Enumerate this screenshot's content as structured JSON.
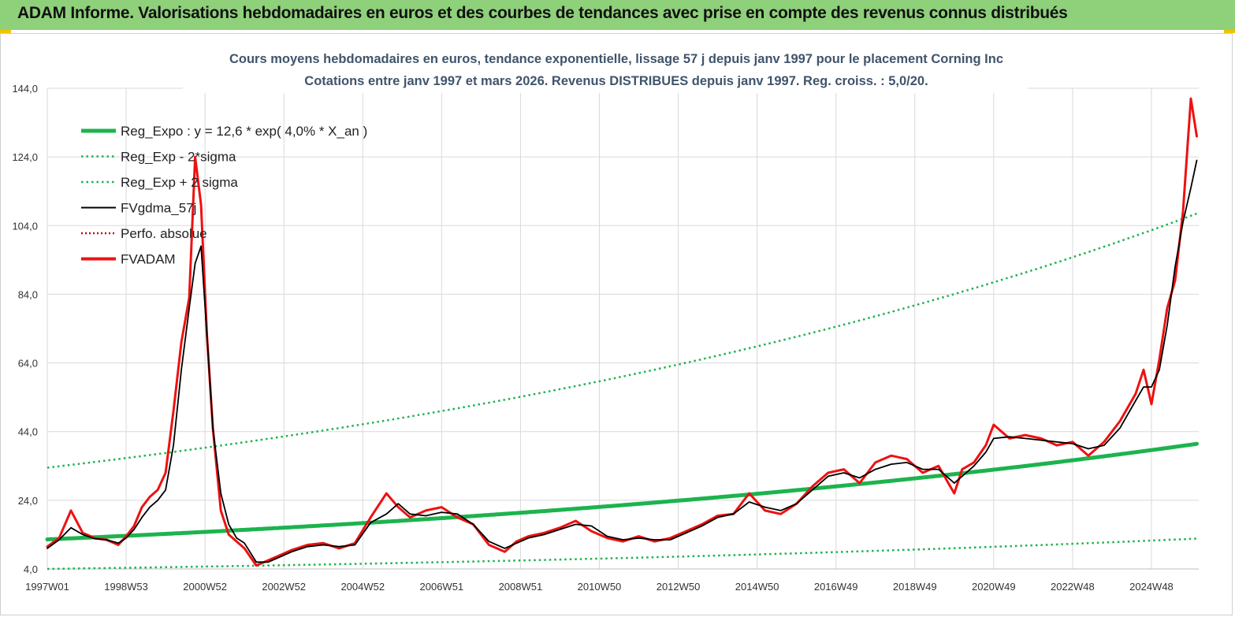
{
  "header": {
    "title": "ADAM Informe. Valorisations hebdomadaires en euros et des courbes de tendances avec prise en compte des revenus connus distribués"
  },
  "chart_data": {
    "type": "line",
    "title": "Cours moyens hebdomadaires en euros, tendance exponentielle, lissage 57 j depuis janv 1997 pour le placement Corning Inc",
    "subtitle": "Cotations entre janv 1997 et mars 2026. Revenus DISTRIBUES depuis janv 1997. Reg. croiss. : 5,0/20.",
    "xlabel": "",
    "ylabel": "",
    "xlim": [
      1997.0,
      2026.2
    ],
    "ylim": [
      4,
      144
    ],
    "yticks": [
      "4,0",
      "24,0",
      "44,0",
      "64,0",
      "84,0",
      "104,0",
      "124,0",
      "144,0"
    ],
    "ytick_values": [
      4,
      24,
      44,
      64,
      84,
      104,
      124,
      144
    ],
    "xticks": [
      "1997W01",
      "1998W53",
      "2000W52",
      "2002W52",
      "2004W52",
      "2006W51",
      "2008W51",
      "2010W50",
      "2012W50",
      "2014W50",
      "2016W49",
      "2018W49",
      "2020W49",
      "2022W48",
      "2024W48"
    ],
    "xtick_values": [
      1997.0,
      1999.0,
      2001.0,
      2003.0,
      2005.0,
      2007.0,
      2009.0,
      2011.0,
      2013.0,
      2015.0,
      2017.0,
      2019.0,
      2021.0,
      2023.0,
      2025.0
    ],
    "grid": true,
    "legend_position": "top-left",
    "colors": {
      "reg": "#1db34d",
      "band": "#1db34d",
      "smooth": "#000000",
      "perf": "#c00000",
      "adam": "#ee1111"
    },
    "series": [
      {
        "name": "Reg_Expo : y = 12,6 * exp( 4,0% *  X_an )",
        "style": "solid-thick",
        "color": "#1db34d",
        "formula": {
          "a": 12.6,
          "rate": 0.04
        }
      },
      {
        "name": "Reg_Exp - 2*sigma",
        "style": "dotted",
        "color": "#1db34d",
        "formula": {
          "a": 4.0,
          "rate": 0.04
        }
      },
      {
        "name": "Reg_Exp + 2 sigma",
        "style": "dotted",
        "color": "#1db34d",
        "formula": {
          "a": 33.5,
          "rate": 0.04
        }
      },
      {
        "name": "FVgdma_57j",
        "style": "solid-thin",
        "color": "#000000",
        "x": [
          1997.0,
          1997.3,
          1997.6,
          1997.9,
          1998.2,
          1998.5,
          1998.8,
          1999.0,
          1999.2,
          1999.4,
          1999.6,
          1999.8,
          2000.0,
          2000.2,
          2000.4,
          2000.6,
          2000.75,
          2000.9,
          2001.05,
          2001.2,
          2001.4,
          2001.6,
          2001.8,
          2002.0,
          2002.3,
          2002.6,
          2002.9,
          2003.2,
          2003.6,
          2004.0,
          2004.4,
          2004.8,
          2005.2,
          2005.6,
          2005.9,
          2006.2,
          2006.6,
          2007.0,
          2007.4,
          2007.8,
          2008.2,
          2008.6,
          2008.9,
          2009.2,
          2009.6,
          2010.0,
          2010.4,
          2010.8,
          2011.2,
          2011.6,
          2012.0,
          2012.4,
          2012.8,
          2013.2,
          2013.6,
          2014.0,
          2014.4,
          2014.8,
          2015.2,
          2015.6,
          2016.0,
          2016.4,
          2016.8,
          2017.2,
          2017.6,
          2018.0,
          2018.4,
          2018.8,
          2019.2,
          2019.6,
          2020.0,
          2020.2,
          2020.5,
          2020.8,
          2021.0,
          2021.4,
          2021.8,
          2022.2,
          2022.6,
          2023.0,
          2023.4,
          2023.8,
          2024.2,
          2024.6,
          2024.8,
          2025.0,
          2025.2,
          2025.4,
          2025.6,
          2025.8,
          2026.0,
          2026.15
        ],
        "y": [
          10.0,
          12.5,
          16.0,
          14.0,
          12.8,
          12.5,
          11.5,
          13.0,
          15.5,
          19.0,
          22.0,
          24.0,
          27.0,
          40.0,
          62.0,
          80.0,
          93.0,
          98.0,
          72.0,
          45.0,
          26.0,
          17.0,
          13.0,
          11.5,
          6.0,
          6.0,
          7.5,
          9.0,
          10.5,
          11.0,
          10.5,
          11.0,
          17.5,
          20.0,
          23.0,
          20.0,
          19.5,
          20.5,
          20.0,
          17.0,
          12.0,
          10.0,
          11.5,
          13.0,
          14.0,
          15.5,
          17.0,
          16.5,
          13.5,
          12.5,
          13.0,
          12.5,
          12.5,
          14.5,
          16.5,
          19.0,
          20.0,
          23.5,
          22.0,
          21.0,
          23.0,
          27.0,
          31.0,
          32.0,
          30.5,
          33.0,
          34.5,
          35.0,
          33.0,
          33.0,
          29.0,
          31.0,
          34.0,
          38.0,
          42.0,
          42.5,
          42.0,
          41.5,
          41.0,
          40.5,
          39.0,
          40.0,
          45.0,
          53.0,
          57.0,
          57.0,
          62.0,
          75.0,
          92.0,
          105.0,
          115.0,
          123.0
        ]
      },
      {
        "name": "Perfo. absolue",
        "style": "dotted",
        "color": "#c00000",
        "hidden": true
      },
      {
        "name": "FVADAM",
        "style": "solid-thick",
        "color": "#ee1111",
        "x": [
          1997.0,
          1997.3,
          1997.6,
          1997.9,
          1998.2,
          1998.5,
          1998.8,
          1999.0,
          1999.2,
          1999.4,
          1999.6,
          1999.8,
          2000.0,
          2000.2,
          2000.4,
          2000.6,
          2000.75,
          2000.9,
          2001.05,
          2001.2,
          2001.4,
          2001.6,
          2001.8,
          2002.0,
          2002.3,
          2002.6,
          2002.9,
          2003.2,
          2003.6,
          2004.0,
          2004.4,
          2004.8,
          2005.2,
          2005.6,
          2005.9,
          2006.2,
          2006.6,
          2007.0,
          2007.4,
          2007.8,
          2008.2,
          2008.6,
          2008.9,
          2009.2,
          2009.6,
          2010.0,
          2010.4,
          2010.8,
          2011.2,
          2011.6,
          2012.0,
          2012.4,
          2012.8,
          2013.2,
          2013.6,
          2014.0,
          2014.4,
          2014.8,
          2015.2,
          2015.6,
          2016.0,
          2016.4,
          2016.8,
          2017.2,
          2017.6,
          2018.0,
          2018.4,
          2018.8,
          2019.2,
          2019.6,
          2020.0,
          2020.2,
          2020.5,
          2020.8,
          2021.0,
          2021.4,
          2021.8,
          2022.2,
          2022.6,
          2023.0,
          2023.4,
          2023.8,
          2024.2,
          2024.6,
          2024.8,
          2025.0,
          2025.2,
          2025.4,
          2025.6,
          2025.8,
          2026.0,
          2026.15
        ],
        "y": [
          10.5,
          13.0,
          21.0,
          14.5,
          13.0,
          12.5,
          11.0,
          13.5,
          16.5,
          22.0,
          25.0,
          27.0,
          32.0,
          50.0,
          70.0,
          83.0,
          124.0,
          110.0,
          72.0,
          45.0,
          21.0,
          14.0,
          12.0,
          10.0,
          5.0,
          6.5,
          8.0,
          9.5,
          11.0,
          11.5,
          10.0,
          11.5,
          19.0,
          26.0,
          22.0,
          19.0,
          21.0,
          22.0,
          19.0,
          17.0,
          11.0,
          9.0,
          12.0,
          13.5,
          14.5,
          16.0,
          18.0,
          15.0,
          13.0,
          12.0,
          13.5,
          12.0,
          13.0,
          15.0,
          17.0,
          19.5,
          20.0,
          26.0,
          21.0,
          20.0,
          23.0,
          28.0,
          32.0,
          33.0,
          29.0,
          35.0,
          37.0,
          36.0,
          32.0,
          34.0,
          26.0,
          33.0,
          35.0,
          40.0,
          46.0,
          42.0,
          43.0,
          42.0,
          40.0,
          41.0,
          37.0,
          41.0,
          47.0,
          55.0,
          62.0,
          52.0,
          65.0,
          80.0,
          88.0,
          108.0,
          141.0,
          130.0
        ]
      }
    ]
  }
}
